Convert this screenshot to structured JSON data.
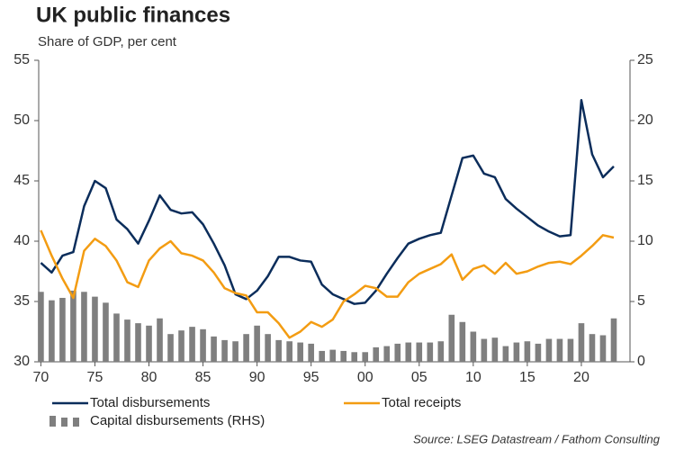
{
  "chart_data": {
    "type": "combo",
    "title": "UK public finances",
    "subtitle": "Share of GDP, per cent",
    "source": "Source: LSEG Datastream / Fathom Consulting",
    "x": [
      1970,
      1971,
      1972,
      1973,
      1974,
      1975,
      1976,
      1977,
      1978,
      1979,
      1980,
      1981,
      1982,
      1983,
      1984,
      1985,
      1986,
      1987,
      1988,
      1989,
      1990,
      1991,
      1992,
      1993,
      1994,
      1995,
      1996,
      1997,
      1998,
      1999,
      2000,
      2001,
      2002,
      2003,
      2004,
      2005,
      2006,
      2007,
      2008,
      2009,
      2010,
      2011,
      2012,
      2013,
      2014,
      2015,
      2016,
      2017,
      2018,
      2019,
      2020,
      2021,
      2022,
      2023
    ],
    "xlim": [
      1969.8,
      2024.5
    ],
    "xticks": [
      {
        "value": 1970,
        "label": "70"
      },
      {
        "value": 1975,
        "label": "75"
      },
      {
        "value": 1980,
        "label": "80"
      },
      {
        "value": 1985,
        "label": "85"
      },
      {
        "value": 1990,
        "label": "90"
      },
      {
        "value": 1995,
        "label": "95"
      },
      {
        "value": 2000,
        "label": "00"
      },
      {
        "value": 2005,
        "label": "05"
      },
      {
        "value": 2010,
        "label": "10"
      },
      {
        "value": 2015,
        "label": "15"
      },
      {
        "value": 2020,
        "label": "20"
      }
    ],
    "ylim": [
      30,
      55
    ],
    "yticks": [
      30,
      35,
      40,
      45,
      50,
      55
    ],
    "y2lim": [
      0,
      25
    ],
    "y2ticks": [
      0,
      5,
      10,
      15,
      20,
      25
    ],
    "series": [
      {
        "name": "Capital disbursements (RHS)",
        "type": "bar",
        "axis": "y2",
        "color": "#7f7f7f",
        "values": [
          5.8,
          5.1,
          5.3,
          5.9,
          5.8,
          5.4,
          4.9,
          4.0,
          3.5,
          3.2,
          3.0,
          3.6,
          2.3,
          2.6,
          2.9,
          2.7,
          2.1,
          1.8,
          1.7,
          2.3,
          3.0,
          2.3,
          1.8,
          1.7,
          1.6,
          1.5,
          0.9,
          1.0,
          0.9,
          0.8,
          0.8,
          1.2,
          1.3,
          1.5,
          1.6,
          1.6,
          1.6,
          1.7,
          3.9,
          3.3,
          2.5,
          1.9,
          2.0,
          1.3,
          1.6,
          1.7,
          1.5,
          1.9,
          1.9,
          1.9,
          3.2,
          2.3,
          2.2,
          3.6
        ]
      },
      {
        "name": "Total disbursements",
        "type": "line",
        "color": "#0b2d5b",
        "values": [
          38.2,
          37.4,
          38.8,
          39.1,
          42.9,
          45.0,
          44.4,
          41.8,
          41.0,
          39.8,
          41.7,
          43.8,
          42.6,
          42.3,
          42.4,
          41.4,
          39.8,
          38.0,
          35.6,
          35.2,
          35.9,
          37.1,
          38.7,
          38.7,
          38.4,
          38.3,
          36.4,
          35.6,
          35.2,
          34.8,
          34.9,
          35.9,
          37.3,
          38.6,
          39.8,
          40.2,
          40.5,
          40.7,
          43.8,
          46.9,
          47.1,
          45.6,
          45.3,
          43.5,
          42.7,
          42.0,
          41.3,
          40.8,
          40.4,
          40.5,
          51.7,
          47.2,
          45.3,
          46.2
        ]
      },
      {
        "name": "Total receipts",
        "type": "line",
        "color": "#f39c12",
        "values": [
          40.9,
          38.8,
          36.9,
          35.3,
          39.2,
          40.2,
          39.6,
          38.4,
          36.6,
          36.2,
          38.4,
          39.4,
          40.0,
          39.0,
          38.8,
          38.4,
          37.4,
          36.1,
          35.7,
          35.5,
          34.1,
          34.1,
          33.2,
          32.0,
          32.5,
          33.3,
          32.9,
          33.5,
          35.0,
          35.6,
          36.3,
          36.1,
          35.4,
          35.4,
          36.6,
          37.3,
          37.7,
          38.1,
          38.9,
          36.8,
          37.7,
          38.0,
          37.3,
          38.2,
          37.3,
          37.5,
          37.9,
          38.2,
          38.3,
          38.1,
          38.8,
          39.6,
          40.5,
          40.3
        ]
      }
    ]
  }
}
